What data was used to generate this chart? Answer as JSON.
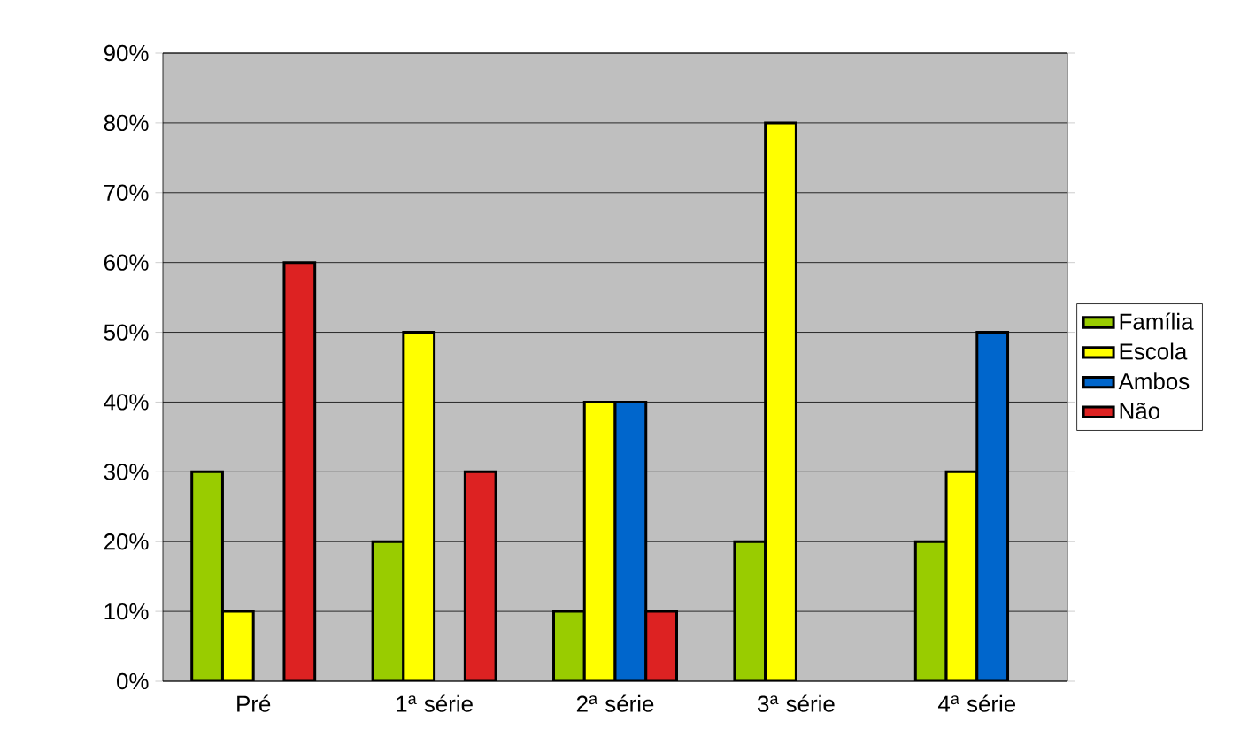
{
  "chart_data": {
    "type": "bar",
    "categories": [
      "Pré",
      "1$^{a}$ série",
      "2$^{a}$ série",
      "3$^{a}$ série",
      "4$^{a}$ série"
    ],
    "series": [
      {
        "name": "Família",
        "color": "#99cc00",
        "values": [
          30,
          20,
          10,
          20,
          20
        ]
      },
      {
        "name": "Escola",
        "color": "#ffff00",
        "values": [
          10,
          50,
          40,
          80,
          30
        ]
      },
      {
        "name": "Ambos",
        "color": "#0066cc",
        "values": [
          null,
          null,
          40,
          null,
          50
        ]
      },
      {
        "name": "Não",
        "color": "#dd2222",
        "values": [
          60,
          30,
          10,
          null,
          null
        ]
      }
    ],
    "ylim": [
      0,
      90
    ],
    "yticks": [
      {
        "value": 0,
        "label": "0%"
      },
      {
        "value": 10,
        "label": "10%"
      },
      {
        "value": 20,
        "label": "20%"
      },
      {
        "value": 30,
        "label": "30%"
      },
      {
        "value": 40,
        "label": "40%"
      },
      {
        "value": 50,
        "label": "50%"
      },
      {
        "value": 60,
        "label": "60%"
      },
      {
        "value": 70,
        "label": "70%"
      },
      {
        "value": 80,
        "label": "80%"
      },
      {
        "value": 90,
        "label": "90%"
      }
    ],
    "grid": "y",
    "legend": "right"
  }
}
